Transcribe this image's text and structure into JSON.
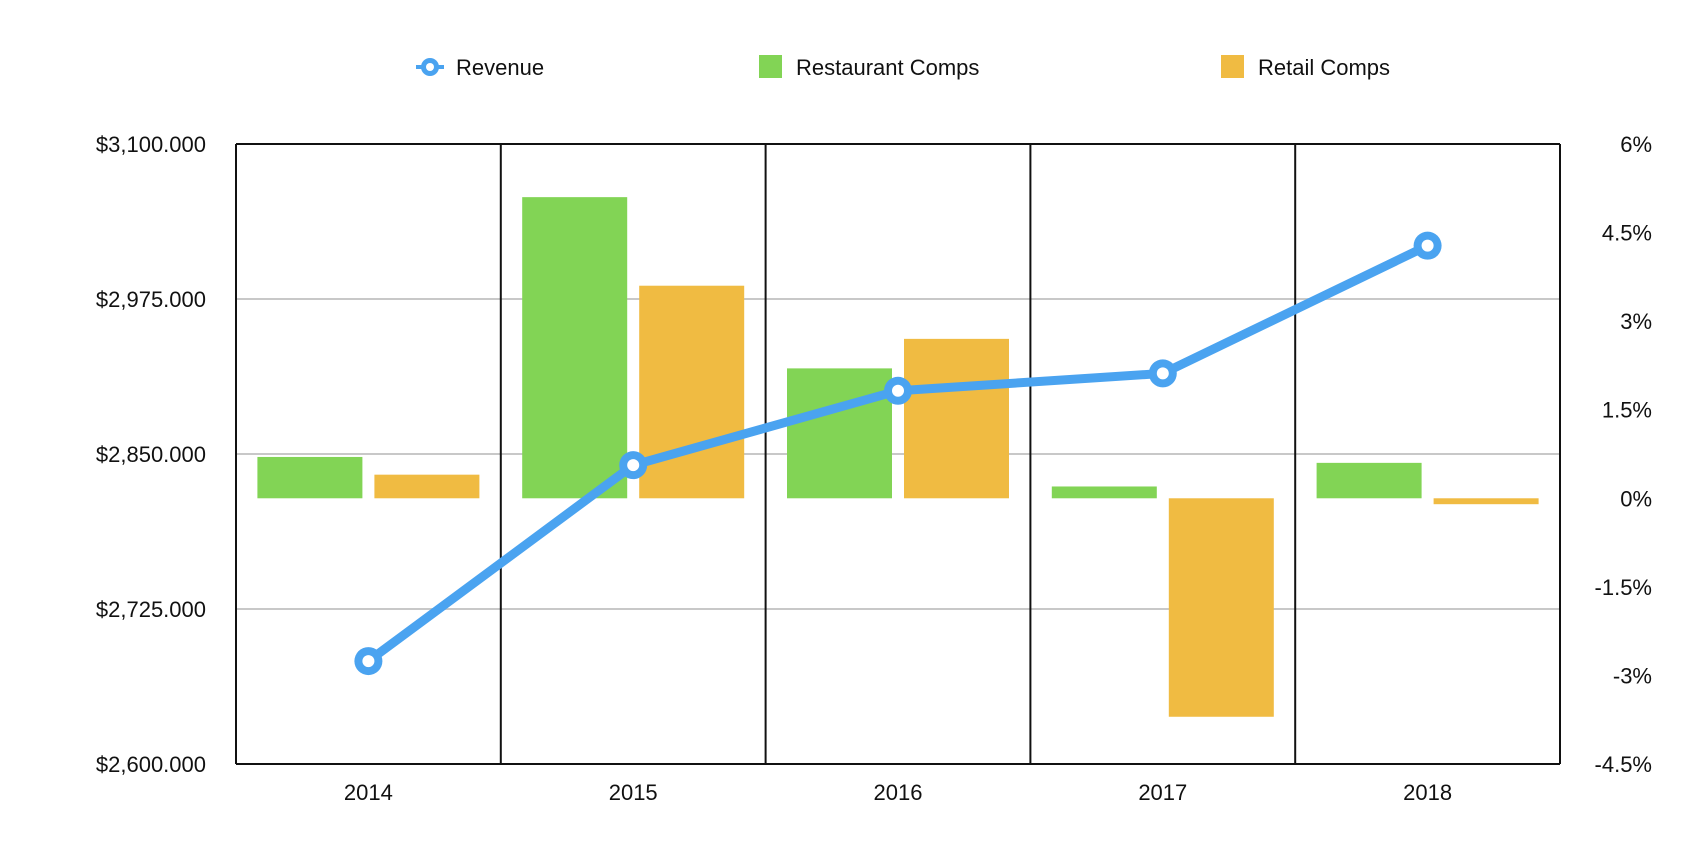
{
  "chart_data": {
    "type": "bar",
    "title": "",
    "categories": [
      "2014",
      "2015",
      "2016",
      "2017",
      "2018"
    ],
    "series": [
      {
        "name": "Revenue",
        "type": "line",
        "axis": "left",
        "color": "#4aa3f0",
        "values": [
          2683000,
          2841000,
          2901000,
          2915000,
          3018000
        ]
      },
      {
        "name": "Restaurant Comps",
        "type": "bar",
        "axis": "right",
        "color": "#82d455",
        "values": [
          0.7,
          5.1,
          2.2,
          0.2,
          0.6
        ]
      },
      {
        "name": "Retail Comps",
        "type": "bar",
        "axis": "right",
        "color": "#f0bb42",
        "values": [
          0.4,
          3.6,
          2.7,
          -3.7,
          -0.1
        ]
      }
    ],
    "y_left": {
      "ylim": [
        2600000,
        3100000
      ],
      "tick_labels": [
        "$2,600.000",
        "$2,725.000",
        "$2,850.000",
        "$2,975.000",
        "$3,100.000"
      ]
    },
    "y_right": {
      "ylim": [
        -4.5,
        6
      ],
      "tick_labels": [
        "-4.5%",
        "-3%",
        "-1.5%",
        "0%",
        "1.5%",
        "3%",
        "4.5%",
        "6%"
      ]
    },
    "grid": true,
    "legend_position": "top-center"
  }
}
